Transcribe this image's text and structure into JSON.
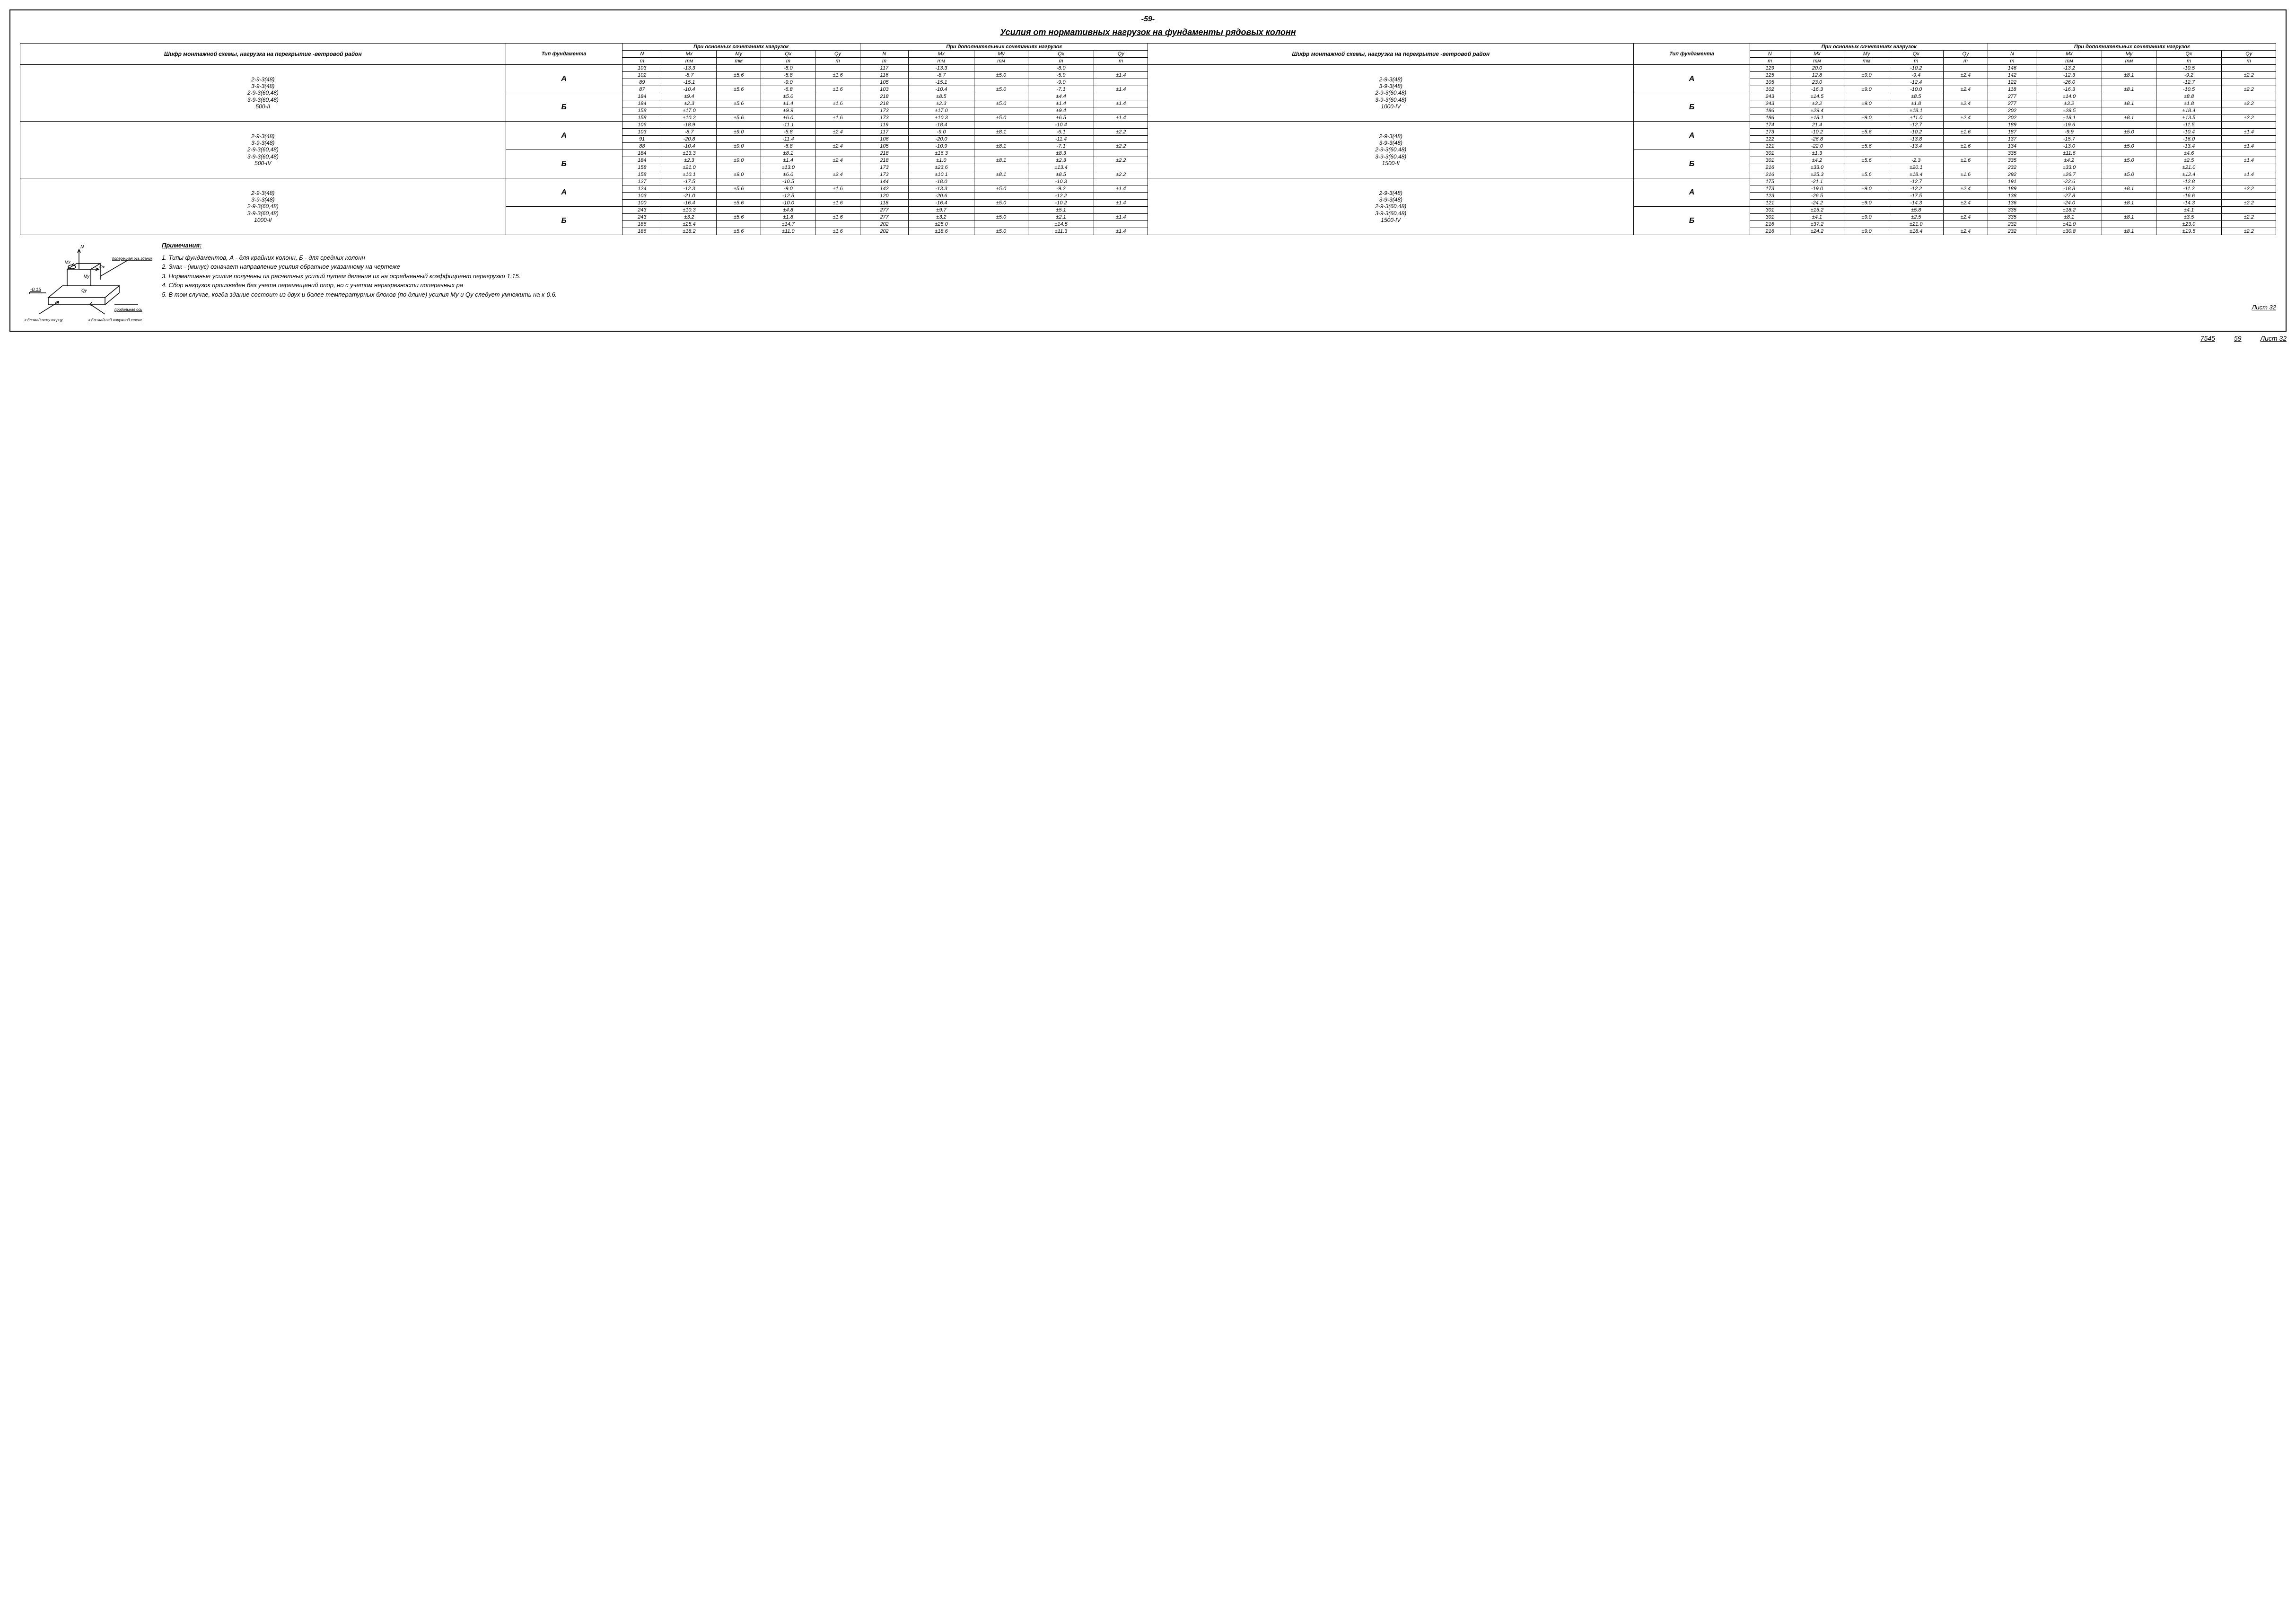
{
  "page_number_top": "-59-",
  "title": "Усилия от нормативных нагрузок на фундаменты рядовых колонн",
  "headers": {
    "col_scheme": "Шифр монтажной схемы, нагрузка на перекрытие -ветровой район",
    "type_fund": "Тип фундамента",
    "main_comb": "При основных сочетаниях нагрузок",
    "addl_comb": "При дополнительных сочетаниях нагрузок",
    "main_comb2": "При основных сочетаниях нагрузок",
    "addl_comb2": "При дополнительных сочетаниях нагрузок",
    "N": "N",
    "Mx": "Mx",
    "My": "My",
    "Qx": "Qx",
    "Qy": "Qy",
    "unit_m": "т",
    "unit_tm": "тм"
  },
  "groups": [
    {
      "label_left": "2-9-3(48)\n3-9-3(48)\n2-9-3(60,48)\n3-9-3(60,48)\n500-II",
      "label_right": "2-9-3(48)\n3-9-3(48)\n2-9-3(60,48)\n3-9-3(60,48)\n1000-IV",
      "blocks": [
        {
          "type": "А",
          "rows_left": [
            [
              "103",
              "-13.3",
              "",
              "-8.0",
              "",
              "117",
              "-13.3",
              "",
              "-8.0",
              ""
            ],
            [
              "102",
              "-8.7",
              "±5.6",
              "-5.8",
              "±1.6",
              "116",
              "-8.7",
              "±5.0",
              "-5.9",
              "±1.4"
            ],
            [
              "89",
              "-15.1",
              "",
              "-9.0",
              "",
              "105",
              "-15.1",
              "",
              "-9.0",
              ""
            ],
            [
              "87",
              "-10.4",
              "±5.6",
              "-6.8",
              "±1.6",
              "103",
              "-10.4",
              "±5.0",
              "-7.1",
              "±1.4"
            ]
          ],
          "rows_right": [
            [
              "129",
              "20.0",
              "",
              "-10.2",
              "",
              "146",
              "-13.2",
              "",
              "-10.5",
              ""
            ],
            [
              "125",
              "12.8",
              "±9.0",
              "-9.4",
              "±2.4",
              "142",
              "-12.3",
              "±8.1",
              "-9.2",
              "±2.2"
            ],
            [
              "105",
              "23.0",
              "",
              "-12.4",
              "",
              "122",
              "-26.0",
              "",
              "-12.7",
              ""
            ],
            [
              "102",
              "-16.3",
              "±9.0",
              "-10.0",
              "±2.4",
              "118",
              "-16.3",
              "±8.1",
              "-10.5",
              "±2.2"
            ]
          ]
        },
        {
          "type": "Б",
          "rows_left": [
            [
              "184",
              "±9.4",
              "",
              "±5.0",
              "",
              "218",
              "±8.5",
              "",
              "±4.4",
              ""
            ],
            [
              "184",
              "±2.3",
              "±5.6",
              "±1.4",
              "±1.6",
              "218",
              "±2.3",
              "±5.0",
              "±1.4",
              "±1.4"
            ],
            [
              "158",
              "±17.0",
              "",
              "±9.9",
              "",
              "173",
              "±17.0",
              "",
              "±9.4",
              ""
            ],
            [
              "158",
              "±10.2",
              "±5.6",
              "±6.0",
              "±1.6",
              "173",
              "±10.3",
              "±5.0",
              "±6.5",
              "±1.4"
            ]
          ],
          "rows_right": [
            [
              "243",
              "±14.5",
              "",
              "±8.5",
              "",
              "277",
              "±14.0",
              "",
              "±8.8",
              ""
            ],
            [
              "243",
              "±3.2",
              "±9.0",
              "±1.8",
              "±2.4",
              "277",
              "±3.2",
              "±8.1",
              "±1.8",
              "±2.2"
            ],
            [
              "186",
              "±29.4",
              "",
              "±18.1",
              "",
              "202",
              "±28.5",
              "",
              "±18.4",
              ""
            ],
            [
              "186",
              "±18.1",
              "±9.0",
              "±11.0",
              "±2.4",
              "202",
              "±18.1",
              "±8.1",
              "±13.5",
              "±2.2"
            ]
          ]
        }
      ]
    },
    {
      "label_left": "2-9-3(48)\n3-9-3(48)\n2-9-3(60,48)\n3-9-3(60,48)\n500-IV",
      "label_right": "2-9-3(48)\n3-9-3(48)\n2-9-3(60,48)\n3-9-3(60,48)\n1500-II",
      "blocks": [
        {
          "type": "А",
          "rows_left": [
            [
              "106",
              "-18.9",
              "",
              "-11.1",
              "",
              "119",
              "-18.4",
              "",
              "-10.4",
              ""
            ],
            [
              "103",
              "-8.7",
              "±9.0",
              "-5.8",
              "±2.4",
              "117",
              "-9.0",
              "±8.1",
              "-6.1",
              "±2.2"
            ],
            [
              "91",
              "-20.8",
              "",
              "-11.4",
              "",
              "106",
              "-20.0",
              "",
              "-11.4",
              ""
            ],
            [
              "88",
              "-10.4",
              "±9.0",
              "-6.8",
              "±2.4",
              "105",
              "-10.9",
              "±8.1",
              "-7.1",
              "±2.2"
            ]
          ],
          "rows_right": [
            [
              "174",
              "21.4",
              "",
              "-12.7",
              "",
              "189",
              "-19.6",
              "",
              "-11.5",
              ""
            ],
            [
              "173",
              "-10.2",
              "±5.6",
              "-10.2",
              "±1.6",
              "187",
              "-9.9",
              "±5.0",
              "-10.4",
              "±1.4"
            ],
            [
              "122",
              "-26.8",
              "",
              "-13.8",
              "",
              "137",
              "-15.7",
              "",
              "-16.0",
              ""
            ],
            [
              "121",
              "-22.0",
              "±5.6",
              "-13.4",
              "±1.6",
              "134",
              "-13.0",
              "±5.0",
              "-13.4",
              "±1.4"
            ]
          ]
        },
        {
          "type": "Б",
          "rows_left": [
            [
              "184",
              "±13.3",
              "",
              "±8.1",
              "",
              "218",
              "±16.3",
              "",
              "±8.3",
              ""
            ],
            [
              "184",
              "±2.3",
              "±9.0",
              "±1.4",
              "±2.4",
              "218",
              "±1.0",
              "±8.1",
              "±2.3",
              "±2.2"
            ],
            [
              "158",
              "±21.0",
              "",
              "±13.0",
              "",
              "173",
              "±23.6",
              "",
              "±13.4",
              ""
            ],
            [
              "158",
              "±10.1",
              "±9.0",
              "±6.0",
              "±2.4",
              "173",
              "±10.1",
              "±8.1",
              "±8.5",
              "±2.2"
            ]
          ],
          "rows_right": [
            [
              "301",
              "±1.3",
              "",
              "",
              "",
              "335",
              "±11.6",
              "",
              "±4.6",
              ""
            ],
            [
              "301",
              "±4.2",
              "±5.6",
              "-2.3",
              "±1.6",
              "335",
              "±4.2",
              "±5.0",
              "±2.5",
              "±1.4"
            ],
            [
              "216",
              "±33.0",
              "",
              "±20.1",
              "",
              "232",
              "±33.0",
              "",
              "±21.0",
              ""
            ],
            [
              "216",
              "±25.3",
              "±5.6",
              "±18.4",
              "±1.6",
              "292",
              "±26.7",
              "±5.0",
              "±12.4",
              "±1.4"
            ]
          ]
        }
      ]
    },
    {
      "label_left": "2-9-3(48)\n3-9-3(48)\n2-9-3(60,48)\n3-9-3(60,48)\n1000-II",
      "label_right": "2-9-3(48)\n3-9-3(48)\n2-9-3(60,48)\n3-9-3(60,48)\n1500-IV",
      "blocks": [
        {
          "type": "А",
          "rows_left": [
            [
              "127",
              "-17.5",
              "",
              "-10.5",
              "",
              "144",
              "-18.0",
              "",
              "-10.3",
              ""
            ],
            [
              "124",
              "-12.3",
              "±5.6",
              "-9.0",
              "±1.6",
              "142",
              "-13.3",
              "±5.0",
              "-9.2",
              "±1.4"
            ],
            [
              "103",
              "-21.0",
              "",
              "-12.5",
              "",
              "120",
              "-20.6",
              "",
              "-12.2",
              ""
            ],
            [
              "100",
              "-16.4",
              "±5.6",
              "-10.0",
              "±1.6",
              "118",
              "-16.4",
              "±5.0",
              "-10.2",
              "±1.4"
            ]
          ],
          "rows_right": [
            [
              "175",
              "-21.1",
              "",
              "-12.7",
              "",
              "191",
              "-22.6",
              "",
              "-12.8",
              ""
            ],
            [
              "173",
              "-19.0",
              "±9.0",
              "-12.2",
              "±2.4",
              "189",
              "-18.8",
              "±8.1",
              "-11.2",
              "±2.2"
            ],
            [
              "123",
              "-26.5",
              "",
              "-17.5",
              "",
              "138",
              "-27.8",
              "",
              "-16.6",
              ""
            ],
            [
              "121",
              "-24.2",
              "±9.0",
              "-14.3",
              "±2.4",
              "136",
              "-24.0",
              "±8.1",
              "-14.3",
              "±2.2"
            ]
          ]
        },
        {
          "type": "Б",
          "rows_left": [
            [
              "243",
              "±10.3",
              "",
              "±4.8",
              "",
              "277",
              "±9.7",
              "",
              "±5.1",
              ""
            ],
            [
              "243",
              "±3.2",
              "±5.6",
              "±1.8",
              "±1.6",
              "277",
              "±3.2",
              "±5.0",
              "±2.1",
              "±1.4"
            ],
            [
              "186",
              "±25.4",
              "",
              "±14.7",
              "",
              "202",
              "±25.0",
              "",
              "±14.5",
              ""
            ],
            [
              "186",
              "±18.2",
              "±5.6",
              "±11.0",
              "±1.6",
              "202",
              "±18.6",
              "±5.0",
              "±11.3",
              "±1.4"
            ]
          ],
          "rows_right": [
            [
              "301",
              "±15.2",
              "",
              "±5.8",
              "",
              "335",
              "±18.2",
              "",
              "±4.1",
              ""
            ],
            [
              "301",
              "±4.1",
              "±9.0",
              "±2.5",
              "±2.4",
              "335",
              "±8.1",
              "±8.1",
              "±3.5",
              "±2.2"
            ],
            [
              "216",
              "±37.2",
              "",
              "±21.0",
              "",
              "232",
              "±41.0",
              "",
              "±23.0",
              ""
            ],
            [
              "216",
              "±24.2",
              "±9.0",
              "±18.4",
              "±2.4",
              "232",
              "±30.8",
              "±8.1",
              "±19.5",
              "±2.2"
            ]
          ]
        }
      ]
    }
  ],
  "notes_title": "Примечания:",
  "notes": [
    "1. Типы фундаментов, А - для крайних колонн, Б - для средних колонн",
    "2. Знак - (минус) означает направление усилия обратное указанному на чертеже",
    "3. Нормативные усилия получены из расчетных усилий путем деления их на осредненный коэффициент перегрузки 1.15.",
    "4. Сбор нагрузок произведен без учета перемещений опор, но с учетом неразрезности поперечных ра",
    "5. В том случае, когда здание состоит из двух и более температурных блоков (по длине) усилия My и Qy следует умножить на к-0.6."
  ],
  "diagram": {
    "labels": {
      "N": "N",
      "Mx": "Mx",
      "My": "My",
      "Qx": "Qx",
      "Qy": "Qy",
      "level": "-0.15",
      "arrow1": "к ближайшему торцу",
      "arrow2": "к ближайшей наружной стене",
      "axis": "продольная ось",
      "cross": "поперечная ось здания"
    }
  },
  "sheet": "Лист 32",
  "footer": {
    "code": "7545",
    "page": "59",
    "sheet": "Лист 32"
  }
}
